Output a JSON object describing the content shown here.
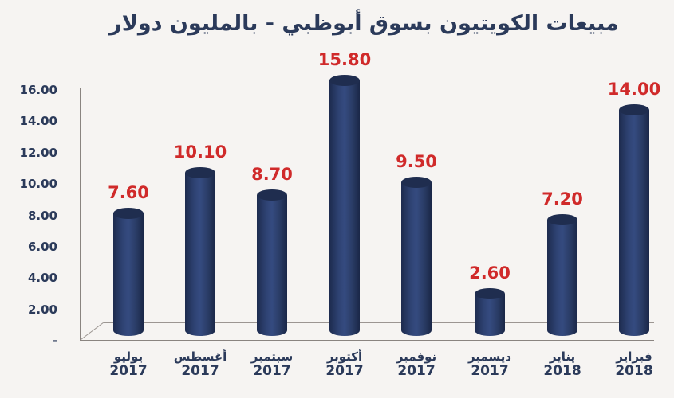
{
  "chart_data": {
    "type": "bar",
    "title": "مبيعات الكويتيون بسوق أبوظبي - بالمليون دولار",
    "xlabel": "",
    "ylabel": "",
    "ylim": [
      0,
      16
    ],
    "yticks": [
      "-",
      "2.00",
      "4.00",
      "6.00",
      "8.00",
      "10.00",
      "12.00",
      "14.00",
      "16.00"
    ],
    "grid": false,
    "legend": "none",
    "categories": [
      {
        "month": "يوليو",
        "year": "2017"
      },
      {
        "month": "أغسطس",
        "year": "2017"
      },
      {
        "month": "سبتمبر",
        "year": "2017"
      },
      {
        "month": "أكتوبر",
        "year": "2017"
      },
      {
        "month": "نوفمبر",
        "year": "2017"
      },
      {
        "month": "ديسمبر",
        "year": "2017"
      },
      {
        "month": "يناير",
        "year": "2018"
      },
      {
        "month": "فبراير",
        "year": "2018"
      }
    ],
    "values": [
      7.6,
      10.1,
      8.7,
      15.8,
      9.5,
      2.6,
      7.2,
      14.0
    ],
    "value_labels": [
      "7.60",
      "10.10",
      "8.70",
      "15.80",
      "9.50",
      "2.60",
      "7.20",
      "14.00"
    ],
    "colors": {
      "bar": "#2e4272",
      "value_label": "#d02a2a",
      "text": "#2b3a5a",
      "background": "#f6f4f2"
    }
  }
}
